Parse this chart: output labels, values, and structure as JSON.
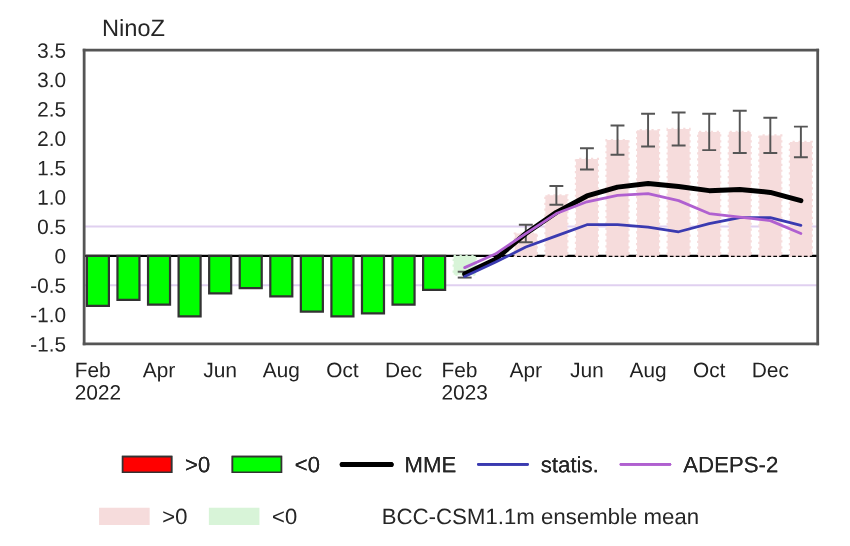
{
  "chart_data": {
    "type": "bar",
    "title": "NinoZ",
    "categories": [
      "Feb\n2022",
      null,
      "Apr",
      null,
      "Jun",
      null,
      "Aug",
      null,
      "Oct",
      null,
      "Dec",
      null,
      "Feb\n2023",
      null,
      "Apr",
      null,
      "Jun",
      null,
      "Aug",
      null,
      "Oct",
      null,
      "Dec",
      null
    ],
    "series": [
      {
        "name": ">0",
        "color": "#ff0000",
        "values": [
          null,
          null,
          null,
          null,
          null,
          null,
          null,
          null,
          null,
          null,
          null,
          null,
          null,
          null,
          null,
          null,
          null,
          null,
          null,
          null,
          null,
          null,
          null,
          null
        ]
      },
      {
        "name": "<0",
        "color": "#00ff00",
        "values": [
          -0.85,
          -0.75,
          -0.83,
          -1.03,
          -0.64,
          -0.55,
          -0.69,
          -0.95,
          -1.03,
          -0.98,
          -0.83,
          -0.58,
          null,
          null,
          null,
          null,
          null,
          null,
          null,
          null,
          null,
          null,
          null,
          null
        ]
      },
      {
        "name": "MME",
        "type": "line",
        "color": "#000000",
        "values": [
          null,
          null,
          null,
          null,
          null,
          null,
          null,
          null,
          null,
          null,
          null,
          null,
          -0.31,
          -0.06,
          0.38,
          0.74,
          1.02,
          1.17,
          1.23,
          1.18,
          1.11,
          1.13,
          1.08,
          0.94
        ]
      },
      {
        "name": "statis.",
        "type": "line",
        "color": "#3a3ab0",
        "values": [
          null,
          null,
          null,
          null,
          null,
          null,
          null,
          null,
          null,
          null,
          null,
          null,
          -0.35,
          -0.11,
          0.15,
          0.34,
          0.53,
          0.53,
          0.49,
          0.41,
          0.55,
          0.65,
          0.65,
          0.52
        ]
      },
      {
        "name": "ADEPS-2",
        "type": "line",
        "color": "#b060d0",
        "values": [
          null,
          null,
          null,
          null,
          null,
          null,
          null,
          null,
          null,
          null,
          null,
          null,
          -0.2,
          0.03,
          0.38,
          0.72,
          0.92,
          1.03,
          1.06,
          0.94,
          0.72,
          0.66,
          0.6,
          0.38
        ]
      },
      {
        "name": ">0",
        "line_style": "dotted",
        "color": "#f6dcdc",
        "values": [
          null,
          null,
          null,
          null,
          null,
          null,
          null,
          null,
          null,
          null,
          null,
          null,
          null,
          null,
          0.38,
          1.03,
          1.65,
          1.97,
          2.14,
          2.16,
          2.11,
          2.11,
          2.05,
          1.94
        ],
        "errors": [
          null,
          null,
          null,
          null,
          null,
          null,
          null,
          null,
          null,
          null,
          null,
          null,
          null,
          null,
          0.15,
          0.16,
          0.18,
          0.25,
          0.28,
          0.28,
          0.31,
          0.36,
          0.3,
          0.26
        ]
      },
      {
        "name": "<0",
        "line_style": "dotted",
        "color": "#d8f4d8",
        "values": [
          null,
          null,
          null,
          null,
          null,
          null,
          null,
          null,
          null,
          null,
          null,
          null,
          -0.32,
          null,
          null,
          null,
          null,
          null,
          null,
          null,
          null,
          null,
          null,
          null
        ],
        "errors": [
          null,
          null,
          null,
          null,
          null,
          null,
          null,
          null,
          null,
          null,
          null,
          null,
          0.05,
          null,
          null,
          null,
          null,
          null,
          null,
          null,
          null,
          null,
          null,
          null
        ]
      }
    ],
    "ylim": [
      -1.5,
      3.5
    ],
    "yticks": [
      -1.5,
      {
        "value": -1,
        "label": "-1.0"
      },
      -0.5,
      0,
      0.5,
      {
        "value": 1,
        "label": "1.0"
      },
      1.5,
      {
        "value": 2,
        "label": "2.0"
      },
      2.5,
      {
        "value": 3,
        "label": "3.0"
      },
      3.5
    ],
    "ref_lines": [
      {
        "axis": "y",
        "value": 0,
        "color": "#000000"
      },
      {
        "axis": "y",
        "value": 0.5,
        "color": "#e0d0f0"
      },
      {
        "axis": "y",
        "value": -0.5,
        "color": "#e0d0f0"
      }
    ],
    "legend": "bottom",
    "grid": false,
    "annotations": [
      "BCC-CSM1.1m ensemble mean"
    ]
  }
}
